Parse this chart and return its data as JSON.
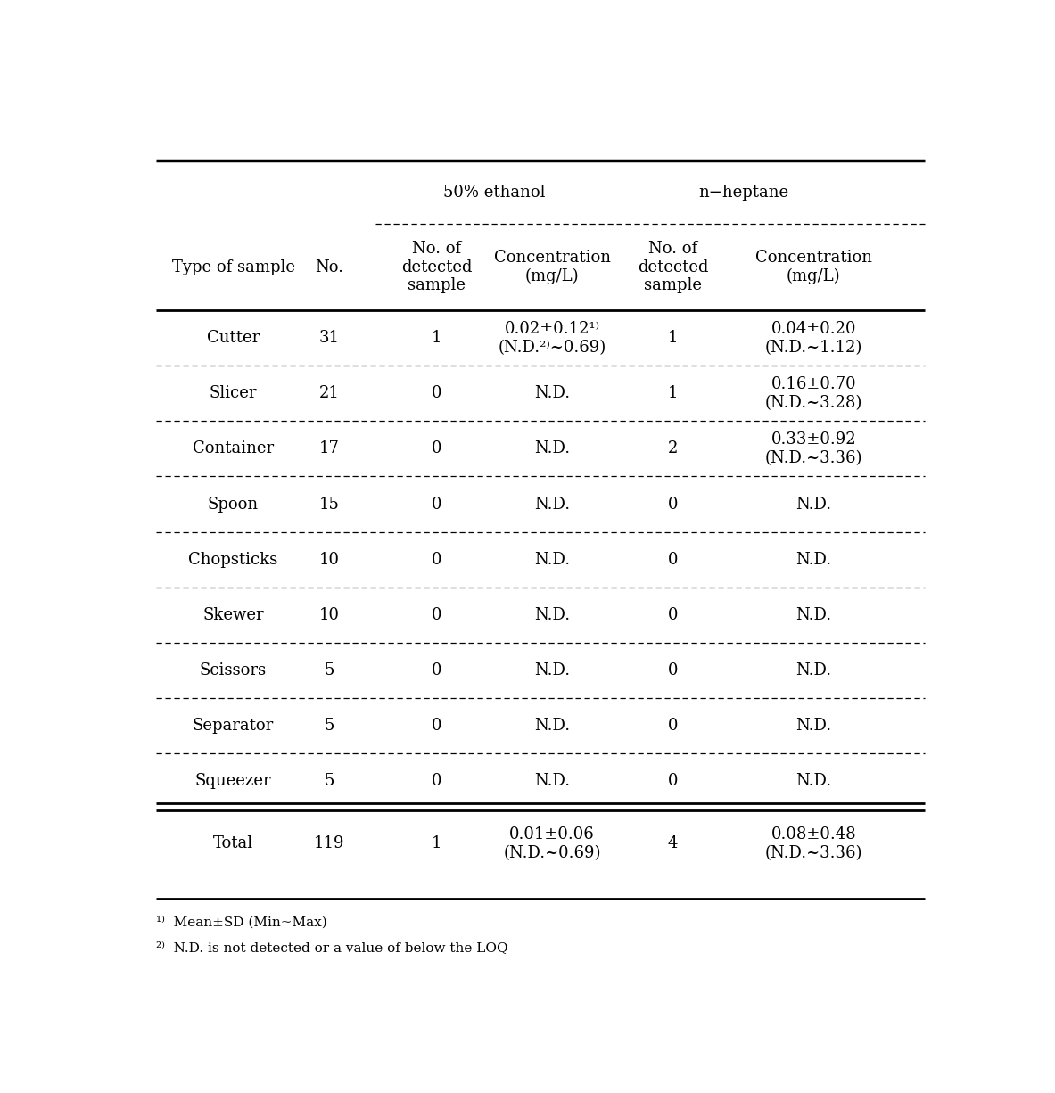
{
  "group1_label": "50% ethanol",
  "group2_label": "n−heptane",
  "col1_label": "Type of sample",
  "col2_label": "No.",
  "col3_label": "No. of\ndetected\nsample",
  "col4_label": "Concentration\n(mg/L)",
  "col5_label": "No. of\ndetected\nsample",
  "col6_label": "Concentration\n(mg/L)",
  "rows": [
    [
      "Cutter",
      "31",
      "1",
      "0.02±0.12¹⁾\n(N.D.²⁾~0.69)",
      "1",
      "0.04±0.20\n(N.D.~1.12)"
    ],
    [
      "Slicer",
      "21",
      "0",
      "N.D.",
      "1",
      "0.16±0.70\n(N.D.~3.28)"
    ],
    [
      "Container",
      "17",
      "0",
      "N.D.",
      "2",
      "0.33±0.92\n(N.D.~3.36)"
    ],
    [
      "Spoon",
      "15",
      "0",
      "N.D.",
      "0",
      "N.D."
    ],
    [
      "Chopsticks",
      "10",
      "0",
      "N.D.",
      "0",
      "N.D."
    ],
    [
      "Skewer",
      "10",
      "0",
      "N.D.",
      "0",
      "N.D."
    ],
    [
      "Scissors",
      "5",
      "0",
      "N.D.",
      "0",
      "N.D."
    ],
    [
      "Separator",
      "5",
      "0",
      "N.D.",
      "0",
      "N.D."
    ],
    [
      "Squeezer",
      "5",
      "0",
      "N.D.",
      "0",
      "N.D."
    ]
  ],
  "total_row": [
    "Total",
    "119",
    "1",
    "0.01±0.06\n(N.D.~0.69)",
    "4",
    "0.08±0.48\n(N.D.~3.36)"
  ],
  "footnote1": "¹⁾  Mean±SD (Min~Max)",
  "footnote2": "²⁾  N.D. is not detected or a value of below the LOQ",
  "font_size": 13,
  "footnote_font_size": 11
}
